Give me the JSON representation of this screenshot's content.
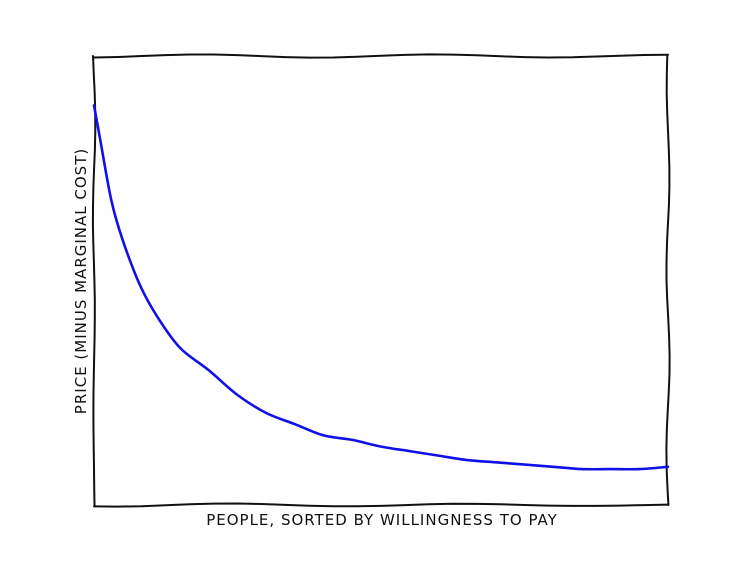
{
  "chart_data": {
    "type": "line",
    "title": "",
    "xlabel": "People, sorted by willingness to pay",
    "ylabel": "Price (minus marginal cost)",
    "xlim": [
      0,
      1
    ],
    "ylim": [
      0,
      1
    ],
    "grid": false,
    "ticks": false,
    "legend": null,
    "series": [
      {
        "color": "#1010e8",
        "x": [
          0.0,
          0.01,
          0.03,
          0.05,
          0.08,
          0.11,
          0.15,
          0.2,
          0.25,
          0.3,
          0.35,
          0.4,
          0.45,
          0.5,
          0.55,
          0.6,
          0.65,
          0.7,
          0.75,
          0.8,
          0.85,
          0.9,
          0.95,
          1.0
        ],
        "y": [
          0.89,
          0.82,
          0.68,
          0.59,
          0.49,
          0.42,
          0.35,
          0.3,
          0.245,
          0.205,
          0.18,
          0.155,
          0.145,
          0.13,
          0.12,
          0.11,
          0.1,
          0.095,
          0.09,
          0.085,
          0.08,
          0.08,
          0.08,
          0.085
        ]
      }
    ],
    "colors": {
      "frame": "#111111",
      "line": "#1010e8",
      "background": "#ffffff"
    }
  }
}
